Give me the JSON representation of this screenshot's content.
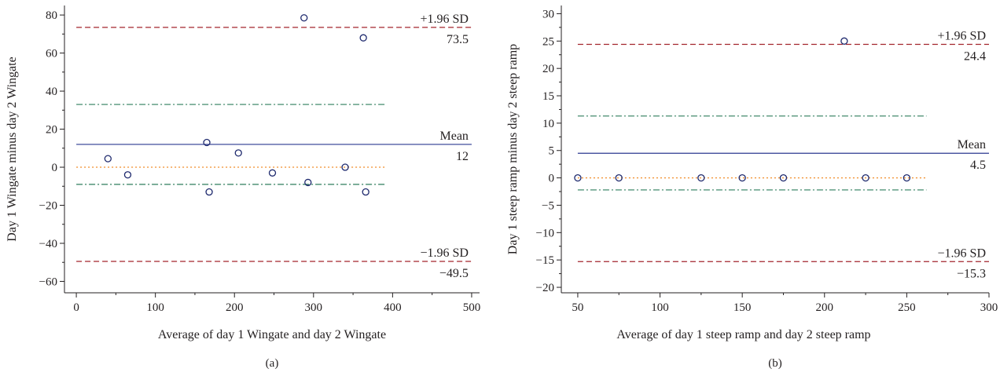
{
  "chart_data": [
    {
      "type": "scatter",
      "caption": "(a)",
      "xlabel": "Average of day 1 Wingate and day 2 Wingate",
      "ylabel": "Day 1 Wingate minus day 2 Wingate",
      "xlim": [
        -15,
        510
      ],
      "ylim": [
        -66,
        85
      ],
      "xticks": [
        0,
        100,
        200,
        300,
        400,
        500
      ],
      "yticks": [
        -60,
        -40,
        -20,
        0,
        20,
        40,
        60,
        80
      ],
      "grid": false,
      "points": [
        {
          "x": 40,
          "y": 4.5
        },
        {
          "x": 65,
          "y": -4
        },
        {
          "x": 165,
          "y": 13
        },
        {
          "x": 168,
          "y": -13
        },
        {
          "x": 205,
          "y": 7.5
        },
        {
          "x": 248,
          "y": -3
        },
        {
          "x": 288,
          "y": 78.5
        },
        {
          "x": 293,
          "y": -8
        },
        {
          "x": 340,
          "y": 0
        },
        {
          "x": 363,
          "y": 68
        },
        {
          "x": 366,
          "y": -13
        }
      ],
      "reference_lines": [
        {
          "name": "+1.96 SD",
          "value": 73.5,
          "value_label": "73.5",
          "x_end": 500,
          "style": "dashed",
          "color": "#a3242c"
        },
        {
          "name": "",
          "value": 33,
          "value_label": "",
          "x_end": 390,
          "style": "dashdot",
          "color": "#2e7d5c"
        },
        {
          "name": "Mean",
          "value": 12,
          "value_label": "12",
          "x_end": 500,
          "style": "solid",
          "color": "#2b3990"
        },
        {
          "name": "",
          "value": 0,
          "value_label": "",
          "x_end": 390,
          "style": "dotted",
          "color": "#f08a24"
        },
        {
          "name": "",
          "value": -9,
          "value_label": "",
          "x_end": 390,
          "style": "dashdot",
          "color": "#2e7d5c"
        },
        {
          "name": "−1.96 SD",
          "value": -49.5,
          "value_label": "−49.5",
          "x_end": 500,
          "style": "dashed",
          "color": "#a3242c"
        }
      ]
    },
    {
      "type": "scatter",
      "caption": "(b)",
      "xlabel": "Average of day 1 steep ramp and day 2 steep ramp",
      "ylabel": "Day 1 steep ramp minus day 2 steep ramp",
      "xlim": [
        40,
        300
      ],
      "ylim": [
        -21,
        31.5
      ],
      "xticks": [
        50,
        100,
        150,
        200,
        250,
        300
      ],
      "yticks": [
        -20,
        -15,
        -10,
        -5,
        0,
        5,
        10,
        15,
        20,
        25,
        30
      ],
      "grid": false,
      "points": [
        {
          "x": 50,
          "y": 0
        },
        {
          "x": 75,
          "y": 0
        },
        {
          "x": 125,
          "y": 0
        },
        {
          "x": 150,
          "y": 0
        },
        {
          "x": 175,
          "y": 0
        },
        {
          "x": 212,
          "y": 25
        },
        {
          "x": 225,
          "y": 0
        },
        {
          "x": 250,
          "y": 0
        }
      ],
      "reference_lines": [
        {
          "name": "+1.96 SD",
          "value": 24.4,
          "value_label": "24.4",
          "x_end": 300,
          "style": "dashed",
          "color": "#a3242c"
        },
        {
          "name": "",
          "value": 11.3,
          "value_label": "",
          "x_end": 262,
          "style": "dashdot",
          "color": "#2e7d5c"
        },
        {
          "name": "Mean",
          "value": 4.5,
          "value_label": "4.5",
          "x_end": 300,
          "style": "solid",
          "color": "#2b3990"
        },
        {
          "name": "",
          "value": 0,
          "value_label": "",
          "x_end": 262,
          "style": "dotted",
          "color": "#f08a24"
        },
        {
          "name": "",
          "value": -2.2,
          "value_label": "",
          "x_end": 262,
          "style": "dashdot",
          "color": "#2e7d5c"
        },
        {
          "name": "−1.96 SD",
          "value": -15.3,
          "value_label": "−15.3",
          "x_end": 300,
          "style": "dashed",
          "color": "#a3242c"
        }
      ]
    }
  ]
}
